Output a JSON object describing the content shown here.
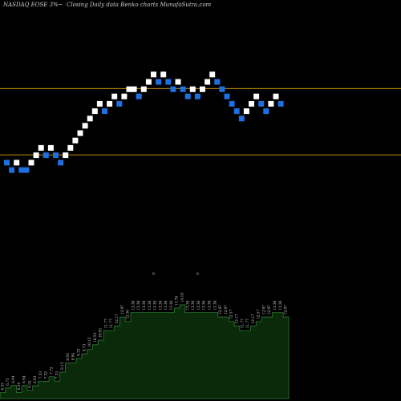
{
  "header": {
    "symbol": "NASDAQ EOSE",
    "pct": "3%~",
    "mode": "Closing Daily data",
    "chart_name": "Renko  charts",
    "source": "MunafaSutra.com"
  },
  "colors": {
    "up_brick": "#ffffff",
    "down_brick": "#1e6fe0",
    "ref_line": "#b8860b",
    "area_fill": "#0a2a0a",
    "area_stroke": "#2e7d32",
    "label_text": "#cfcfcf"
  },
  "chart_data": {
    "type": "renko",
    "title": "",
    "reference_lines": [
      13.4,
      9.8
    ],
    "bricks": [
      {
        "dir": "down",
        "level": 9.38
      },
      {
        "dir": "down",
        "level": 8.98
      },
      {
        "dir": "up",
        "level": 9.38
      },
      {
        "dir": "down",
        "level": 8.98
      },
      {
        "dir": "down",
        "level": 8.98
      },
      {
        "dir": "up",
        "level": 9.38
      },
      {
        "dir": "up",
        "level": 9.78
      },
      {
        "dir": "up",
        "level": 10.18
      },
      {
        "dir": "down",
        "level": 9.78
      },
      {
        "dir": "up",
        "level": 10.18
      },
      {
        "dir": "down",
        "level": 9.78
      },
      {
        "dir": "down",
        "level": 9.38
      },
      {
        "dir": "up",
        "level": 9.78
      },
      {
        "dir": "up",
        "level": 10.18
      },
      {
        "dir": "up",
        "level": 10.58
      },
      {
        "dir": "up",
        "level": 10.98
      },
      {
        "dir": "up",
        "level": 11.38
      },
      {
        "dir": "up",
        "level": 11.77
      },
      {
        "dir": "up",
        "level": 12.17
      },
      {
        "dir": "up",
        "level": 12.57
      },
      {
        "dir": "down",
        "level": 12.17
      },
      {
        "dir": "up",
        "level": 12.57
      },
      {
        "dir": "up",
        "level": 12.97
      },
      {
        "dir": "down",
        "level": 12.57
      },
      {
        "dir": "up",
        "level": 12.97
      },
      {
        "dir": "up",
        "level": 13.36
      },
      {
        "dir": "up",
        "level": 13.36
      },
      {
        "dir": "down",
        "level": 12.97
      },
      {
        "dir": "up",
        "level": 13.36
      },
      {
        "dir": "up",
        "level": 13.76
      },
      {
        "dir": "up",
        "level": 14.16
      },
      {
        "dir": "down",
        "level": 13.76
      },
      {
        "dir": "up",
        "level": 14.16
      },
      {
        "dir": "down",
        "level": 13.76
      },
      {
        "dir": "down",
        "level": 13.36
      },
      {
        "dir": "up",
        "level": 13.76
      },
      {
        "dir": "down",
        "level": 13.36
      },
      {
        "dir": "down",
        "level": 12.97
      },
      {
        "dir": "up",
        "level": 13.36
      },
      {
        "dir": "down",
        "level": 12.97
      },
      {
        "dir": "up",
        "level": 13.36
      },
      {
        "dir": "up",
        "level": 13.76
      },
      {
        "dir": "up",
        "level": 14.16
      },
      {
        "dir": "down",
        "level": 13.76
      },
      {
        "dir": "down",
        "level": 13.36
      },
      {
        "dir": "down",
        "level": 12.97
      },
      {
        "dir": "down",
        "level": 12.57
      },
      {
        "dir": "down",
        "level": 12.17
      },
      {
        "dir": "down",
        "level": 11.77
      },
      {
        "dir": "up",
        "level": 12.17
      },
      {
        "dir": "up",
        "level": 12.57
      },
      {
        "dir": "up",
        "level": 12.97
      },
      {
        "dir": "down",
        "level": 12.57
      },
      {
        "dir": "down",
        "level": 12.17
      },
      {
        "dir": "up",
        "level": 12.57
      },
      {
        "dir": "up",
        "level": 12.97
      },
      {
        "dir": "down",
        "level": 12.57
      }
    ],
    "lower_panel": {
      "values": [
        "6.33",
        "6.73",
        "6.94",
        "6.34",
        "6.94",
        "6.52",
        "6.93",
        "7.33",
        "7.32",
        "7.72",
        "7.33",
        "8.13",
        "8.93",
        "8.94",
        "9.33",
        "9.73",
        "10.13",
        "10.53",
        "10.93",
        "11.77",
        "11.77",
        "12.17",
        "12.97",
        "12.56",
        "13.36",
        "13.36",
        "13.36",
        "13.36",
        "13.36",
        "13.36",
        "13.36",
        "13.36",
        "13.76",
        "14.16",
        "13.36",
        "13.36",
        "13.36",
        "13.36",
        "13.36",
        "13.36",
        "12.97",
        "12.97",
        "12.57",
        "12.17",
        "11.77",
        "11.77",
        "12.17",
        "12.57",
        "12.97",
        "12.97",
        "13.36",
        "13.36",
        "12.97"
      ],
      "markers": [
        "0",
        "0"
      ]
    }
  }
}
